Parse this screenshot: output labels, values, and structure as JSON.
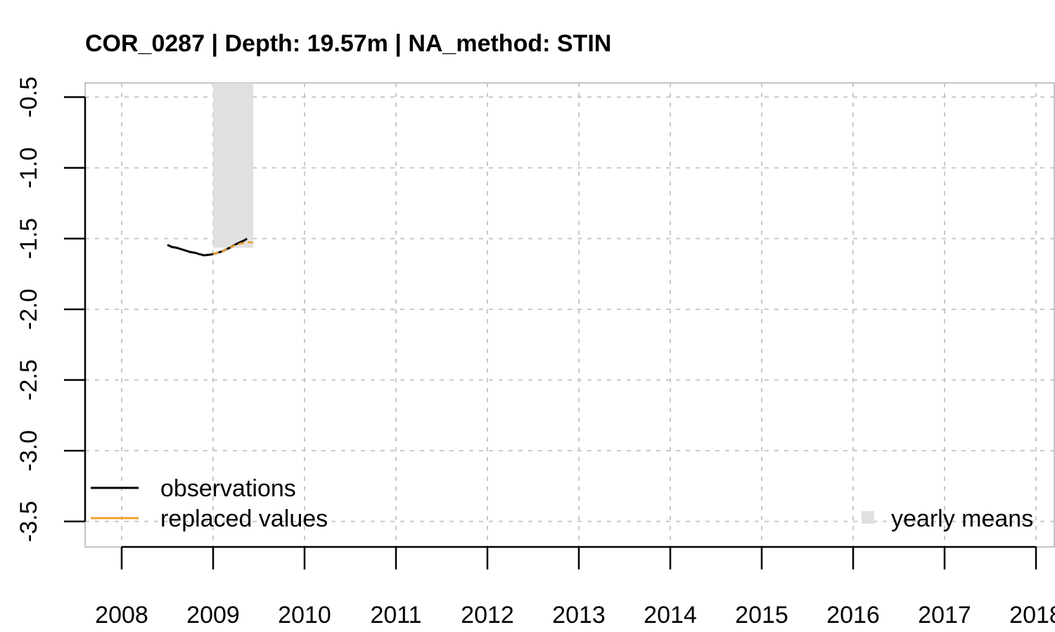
{
  "chart_data": {
    "type": "line",
    "title": "COR_0287 | Depth: 19.57m | NA_method: STIN",
    "xlabel": "",
    "ylabel": "",
    "xlim": [
      2007.6,
      2018.2
    ],
    "ylim": [
      -3.68,
      -0.4
    ],
    "x_ticks": [
      "2008",
      "2009",
      "2010",
      "2011",
      "2012",
      "2013",
      "2014",
      "2015",
      "2016",
      "2017",
      "2018"
    ],
    "y_ticks": [
      "-0.5",
      "-1.0",
      "-1.5",
      "-2.0",
      "-2.5",
      "-3.0",
      "-3.5"
    ],
    "grid": true,
    "yearly_means": [
      {
        "x_start": 2009.0,
        "x_end": 2009.44,
        "value": -1.565
      }
    ],
    "series": [
      {
        "name": "observations",
        "color": "#000000",
        "x": [
          2008.5,
          2008.55,
          2008.6,
          2008.65,
          2008.7,
          2008.75,
          2008.8,
          2008.85,
          2008.9,
          2008.95,
          2009.0,
          2009.05,
          2009.1,
          2009.15,
          2009.2,
          2009.25,
          2009.3,
          2009.35,
          2009.37
        ],
        "y": [
          -1.545,
          -1.56,
          -1.565,
          -1.575,
          -1.585,
          -1.595,
          -1.6,
          -1.61,
          -1.618,
          -1.615,
          -1.61,
          -1.6,
          -1.59,
          -1.575,
          -1.56,
          -1.54,
          -1.525,
          -1.51,
          -1.5
        ]
      },
      {
        "name": "replaced values",
        "color": "#f0a030",
        "x": [
          2009.0,
          2009.05,
          2009.1,
          2009.15,
          2009.2,
          2009.25,
          2009.3,
          2009.35,
          2009.4,
          2009.44
        ],
        "y": [
          -1.61,
          -1.6,
          -1.59,
          -1.575,
          -1.56,
          -1.545,
          -1.535,
          -1.53,
          -1.525,
          -1.53
        ]
      }
    ],
    "legend": {
      "bottom-left": [
        "observations",
        "replaced values"
      ],
      "bottom-right": [
        "yearly means"
      ]
    }
  }
}
